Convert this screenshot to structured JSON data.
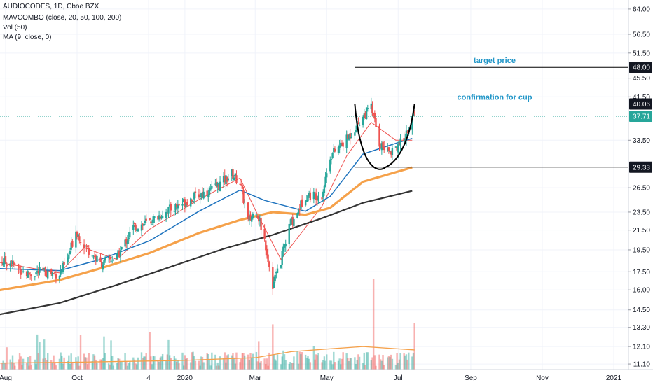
{
  "header": {
    "title": "AUDIOCODES, 1D, Cboe BZX",
    "indicator_1": "MAVCOMBO (close, 20, 50, 100, 200)",
    "indicator_2": "Vol (50)",
    "indicator_3": "MA (9, close, 0)"
  },
  "colors": {
    "up": "#26a69a",
    "down": "#ef5350",
    "ma20": "#ef5350",
    "ma50": "#1e73be",
    "ma100": "#f5a14a",
    "ma200": "#333333",
    "annotation": "#2196c8",
    "last_price_badge": "#26a69a"
  },
  "chart_data": {
    "type": "candlestick",
    "symbol": "AUDIOCODES",
    "interval": "1D",
    "exchange": "Cboe BZX",
    "scale": "log",
    "ylim": [
      10.8,
      66
    ],
    "y_ticks": [
      "64.00",
      "56.50",
      "51.50",
      "45.50",
      "41.50",
      "33.50",
      "26.50",
      "23.50",
      "21.50",
      "19.50",
      "17.50",
      "16.00",
      "14.50",
      "13.30",
      "12.10",
      "11.10"
    ],
    "x_ticks": [
      "Aug",
      "Oct",
      "4",
      "2020",
      "Mar",
      "May",
      "Jul",
      "Sep",
      "Nov",
      "2021"
    ],
    "price_badges": [
      {
        "label": "48.00",
        "value": 48.0,
        "style": "dark"
      },
      {
        "label": "40.06",
        "value": 40.06,
        "style": "dark"
      },
      {
        "label": "37.71",
        "value": 37.71,
        "style": "last"
      },
      {
        "label": "29.33",
        "value": 29.33,
        "style": "dark"
      }
    ],
    "annotations": {
      "target_label": "target price",
      "cup_label": "confirmation for cup"
    },
    "close_path": [
      [
        "2019-07-22",
        18.6
      ],
      [
        "2019-08-05",
        18.3
      ],
      [
        "2019-08-19",
        17.3
      ],
      [
        "2019-09-02",
        17.5
      ],
      [
        "2019-09-16",
        17.3
      ],
      [
        "2019-09-23",
        18.6
      ],
      [
        "2019-09-30",
        21.5
      ],
      [
        "2019-10-07",
        20.0
      ],
      [
        "2019-10-21",
        18.2
      ],
      [
        "2019-11-04",
        18.8
      ],
      [
        "2019-11-18",
        21.8
      ],
      [
        "2019-12-02",
        22.4
      ],
      [
        "2019-12-16",
        23.6
      ],
      [
        "2019-12-30",
        24.6
      ],
      [
        "2020-01-13",
        25.6
      ],
      [
        "2020-01-27",
        26.5
      ],
      [
        "2020-02-10",
        28.4
      ],
      [
        "2020-02-17",
        27.2
      ],
      [
        "2020-02-24",
        22.4
      ],
      [
        "2020-03-02",
        23.8
      ],
      [
        "2020-03-09",
        20.5
      ],
      [
        "2020-03-16",
        16.4
      ],
      [
        "2020-03-23",
        18.5
      ],
      [
        "2020-03-30",
        21.8
      ],
      [
        "2020-04-13",
        25.5
      ],
      [
        "2020-04-27",
        25.6
      ],
      [
        "2020-05-04",
        31.0
      ],
      [
        "2020-05-18",
        33.6
      ],
      [
        "2020-06-01",
        37.7
      ],
      [
        "2020-06-08",
        39.5
      ],
      [
        "2020-06-15",
        33.0
      ],
      [
        "2020-06-22",
        31.6
      ],
      [
        "2020-06-29",
        32.5
      ],
      [
        "2020-07-06",
        33.5
      ],
      [
        "2020-07-13",
        37.71
      ]
    ],
    "series": [
      {
        "name": "20",
        "values": [
          [
            "2019-07-22",
            18.4
          ],
          [
            "2019-09-16",
            17.4
          ],
          [
            "2019-10-07",
            19.7
          ],
          [
            "2019-11-04",
            18.6
          ],
          [
            "2019-12-02",
            21.6
          ],
          [
            "2020-01-13",
            25.0
          ],
          [
            "2020-02-17",
            27.8
          ],
          [
            "2020-03-02",
            23.5
          ],
          [
            "2020-03-23",
            18.6
          ],
          [
            "2020-04-27",
            24.2
          ],
          [
            "2020-05-18",
            31.0
          ],
          [
            "2020-06-08",
            36.6
          ],
          [
            "2020-06-29",
            33.5
          ],
          [
            "2020-07-13",
            33.5
          ]
        ]
      },
      {
        "name": "50",
        "values": [
          [
            "2019-07-22",
            17.8
          ],
          [
            "2019-09-16",
            17.6
          ],
          [
            "2019-10-21",
            18.6
          ],
          [
            "2019-12-02",
            20.4
          ],
          [
            "2020-01-13",
            23.6
          ],
          [
            "2020-02-17",
            26.2
          ],
          [
            "2020-03-09",
            24.9
          ],
          [
            "2020-04-13",
            23.6
          ],
          [
            "2020-05-04",
            25.4
          ],
          [
            "2020-06-01",
            31.3
          ],
          [
            "2020-06-29",
            33.0
          ],
          [
            "2020-07-13",
            33.8
          ]
        ]
      },
      {
        "name": "100",
        "values": [
          [
            "2019-07-22",
            15.9
          ],
          [
            "2019-09-16",
            16.8
          ],
          [
            "2019-10-21",
            17.8
          ],
          [
            "2019-12-02",
            19.2
          ],
          [
            "2020-01-13",
            21.2
          ],
          [
            "2020-02-17",
            22.6
          ],
          [
            "2020-03-16",
            23.5
          ],
          [
            "2020-04-13",
            23.2
          ],
          [
            "2020-05-04",
            24.0
          ],
          [
            "2020-06-01",
            27.3
          ],
          [
            "2020-07-13",
            29.3
          ]
        ]
      },
      {
        "name": "200",
        "values": [
          [
            "2019-07-22",
            14.1
          ],
          [
            "2019-09-16",
            15.0
          ],
          [
            "2019-11-04",
            16.4
          ],
          [
            "2019-12-16",
            17.8
          ],
          [
            "2020-02-03",
            19.6
          ],
          [
            "2020-03-16",
            21.0
          ],
          [
            "2020-04-27",
            22.8
          ],
          [
            "2020-06-01",
            24.6
          ],
          [
            "2020-07-13",
            26.1
          ]
        ]
      }
    ],
    "horizontal_lines": [
      {
        "label": "target price",
        "value": 48.0,
        "from": "2020-05-25",
        "to": "2021-01-25"
      },
      {
        "label": "confirmation for cup",
        "value": 40.06,
        "from": "2020-05-25",
        "to": "2021-01-25"
      },
      {
        "value": 29.33,
        "from": "2020-05-25",
        "to": "2021-01-25"
      }
    ],
    "cup": [
      [
        "2020-05-25",
        40.06
      ],
      [
        "2020-06-05",
        33.0
      ],
      [
        "2020-06-20",
        29.3
      ],
      [
        "2020-07-06",
        33.0
      ],
      [
        "2020-07-15",
        40.06
      ]
    ],
    "volume_bars": {
      "colors": "alternating up/down",
      "spikes": [
        [
          "2020-03-16",
          13.5
        ],
        [
          "2020-06-10",
          16.9
        ],
        [
          "2020-05-10",
          14.0
        ],
        [
          "2020-07-15",
          13.6
        ]
      ]
    }
  }
}
